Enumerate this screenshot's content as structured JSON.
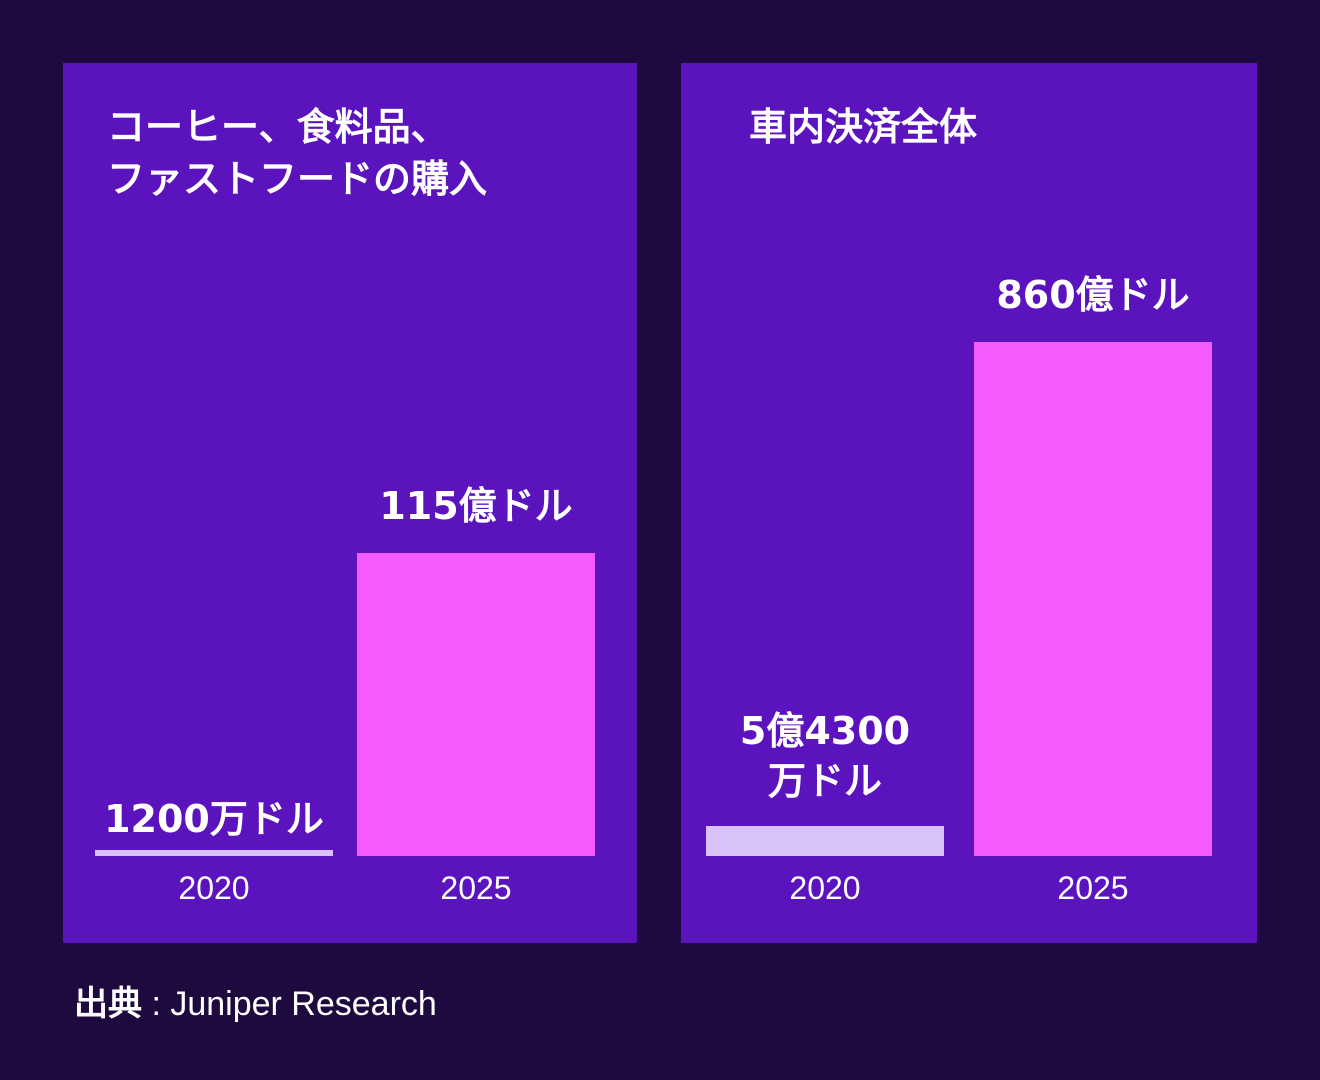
{
  "colors": {
    "background": "#1e0a3e",
    "panel": "#5b13be",
    "bar_2025": "#f55aff",
    "bar_2020": "#d8c2f7",
    "text": "#ffffff"
  },
  "chart_data": [
    {
      "type": "bar",
      "title": "コーヒー、食料品、\nファストフードの購入",
      "categories": [
        "2020",
        "2025"
      ],
      "values": [
        0.12,
        115
      ],
      "value_labels": [
        "1200万ドル",
        "115億ドル"
      ],
      "unit": "億ドル",
      "xlabel": "",
      "ylabel": "",
      "grid": false
    },
    {
      "type": "bar",
      "title": "車内決済全体",
      "categories": [
        "2020",
        "2025"
      ],
      "values": [
        5.43,
        860
      ],
      "value_labels": [
        "5億4300\n万ドル",
        "860億ドル"
      ],
      "unit": "億ドル",
      "xlabel": "",
      "ylabel": "",
      "grid": false
    }
  ],
  "source": {
    "label": "出典",
    "separator": " : ",
    "text": "Juniper Research"
  }
}
